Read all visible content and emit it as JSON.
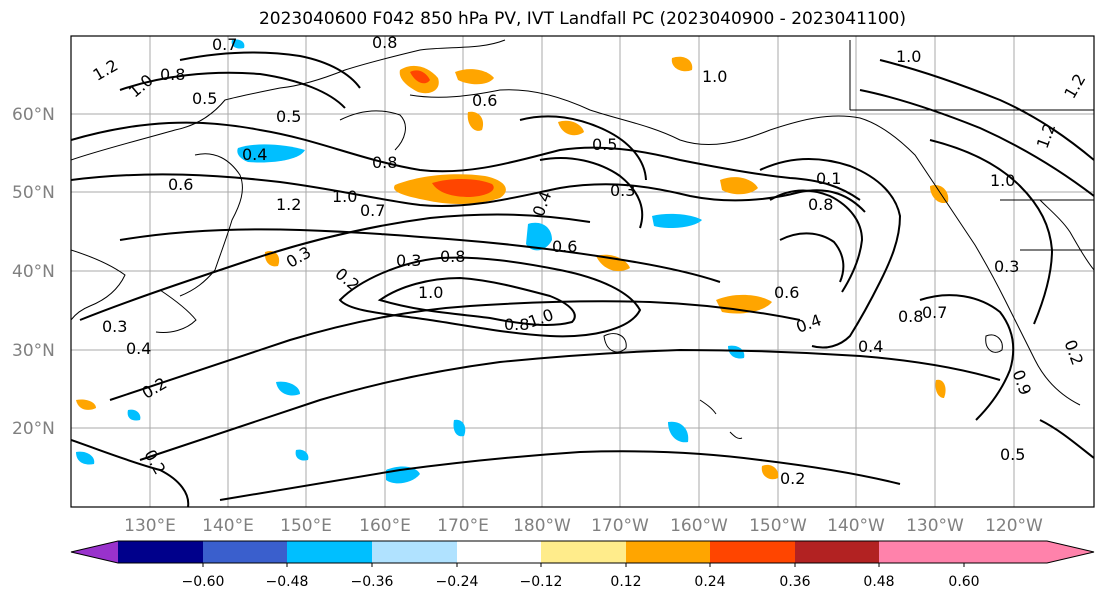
{
  "title": "2023040600 F042 850 hPa PV, IVT Landfall PC (2023040900 - 2023041100)",
  "map": {
    "lat_labels": [
      "60°N",
      "50°N",
      "40°N",
      "30°N",
      "20°N"
    ],
    "lon_labels": [
      "130°E",
      "140°E",
      "150°E",
      "160°E",
      "170°E",
      "180°W",
      "170°W",
      "160°W",
      "150°W",
      "140°W",
      "130°W",
      "120°W"
    ]
  },
  "contour_labels": [
    "1.2",
    "1.0",
    "0.8",
    "0.5",
    "0.7",
    "0.8",
    "0.6",
    "1.0",
    "0.5",
    "1.0",
    "1.2",
    "1.2",
    "0.6",
    "0.4",
    "0.8",
    "0.5",
    "1.2",
    "1.0",
    "0.7",
    "0.3",
    "0.4",
    "0.6",
    "0.1",
    "0.8",
    "0.3",
    "1.0",
    "0.8",
    "0.2",
    "0.3",
    "1.0",
    "0.8",
    "1.0",
    "0.3",
    "0.4",
    "0.2",
    "0.3",
    "0.6",
    "0.4",
    "0.8",
    "0.7",
    "0.4",
    "0.2",
    "0.5",
    "0.2",
    "0.9",
    "0.2"
  ],
  "colorbar": {
    "ticks": [
      "−0.60",
      "−0.48",
      "−0.36",
      "−0.24",
      "−0.12",
      "0.12",
      "0.24",
      "0.36",
      "0.48",
      "0.60"
    ],
    "colors": [
      "#9932cc",
      "#00008b",
      "#3a5fcd",
      "#00bfff",
      "#b0e2ff",
      "#ffffff",
      "#ffec8b",
      "#ffa500",
      "#ff4500",
      "#b22222",
      "#ff82ab",
      "#ff82ab"
    ]
  }
}
